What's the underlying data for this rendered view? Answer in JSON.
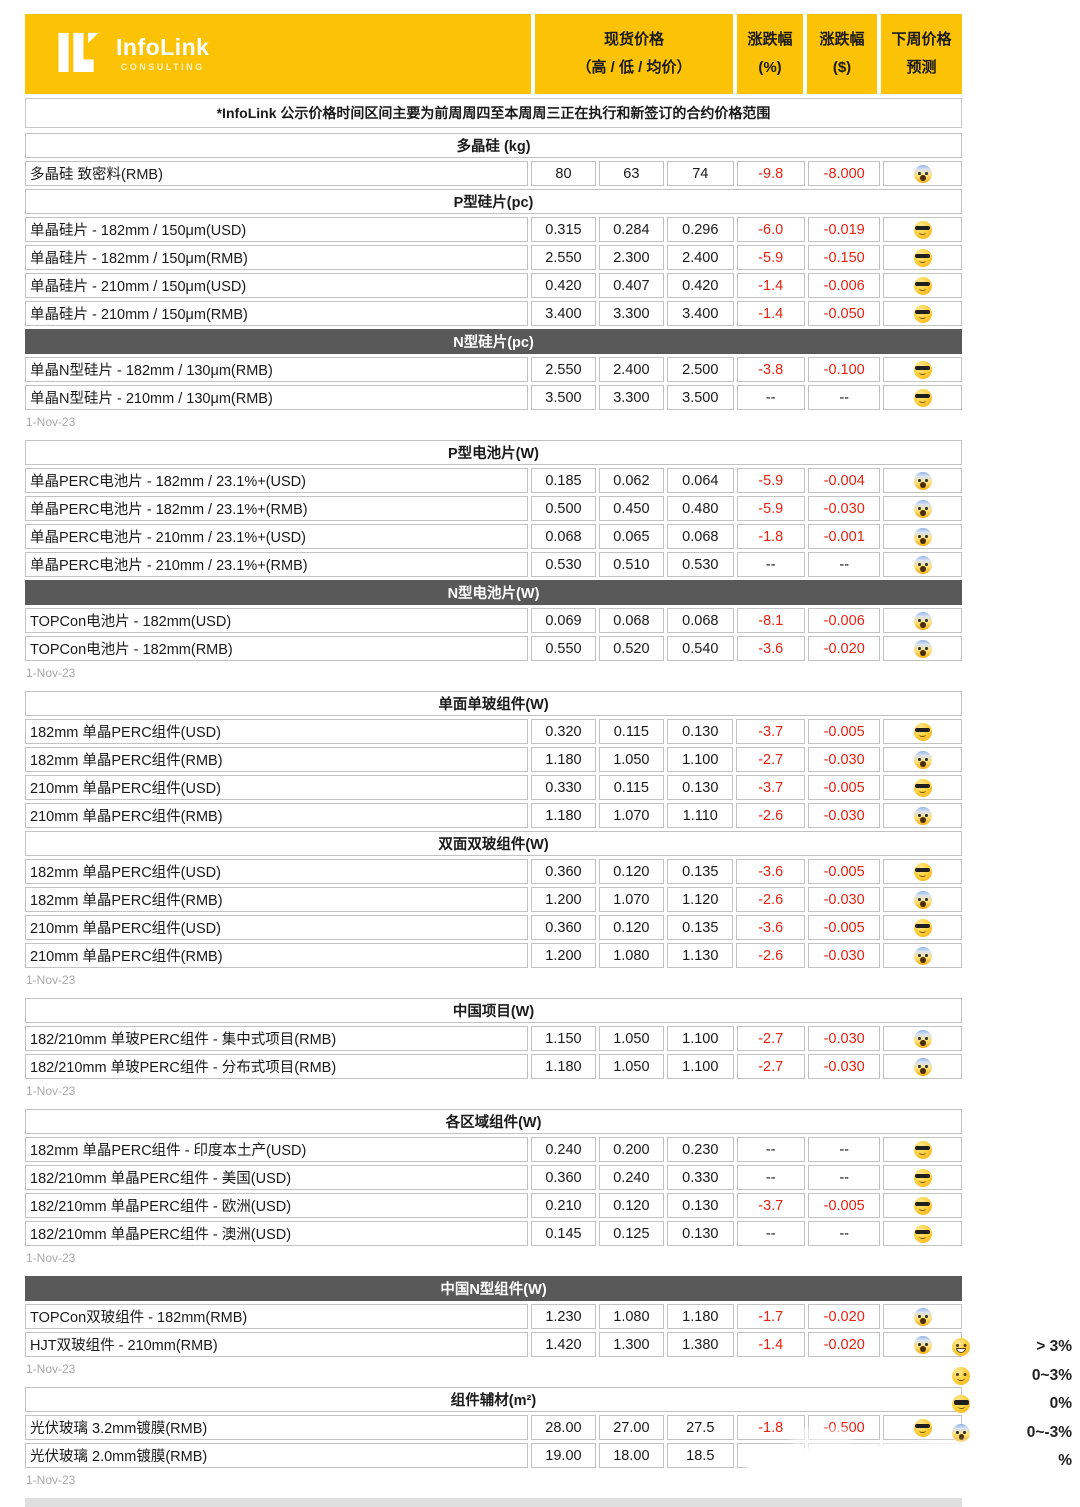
{
  "header": {
    "logo": {
      "name": "InfoLink",
      "subtitle": "CONSULTING"
    },
    "columns": {
      "spot_title": "现货价格",
      "spot_sub": "（高 / 低 / 均价）",
      "pct_title": "涨跌幅",
      "pct_sub": "(%)",
      "usd_title": "涨跌幅",
      "usd_sub": "($)",
      "forecast_title": "下周价格",
      "forecast_sub": "预测"
    }
  },
  "note": "*InfoLink 公示价格时间区间主要为前周周四至本周周三正在执行和新签订的合约价格范围",
  "date_label": "1-Nov-23",
  "colors": {
    "accent_yellow": "#fcc306",
    "section_light_gray": "#d9d9d9",
    "section_dark_gray": "#595959",
    "negative_red": "#e42313"
  },
  "legend": [
    {
      "emoji": "grin",
      "label": "> 3%"
    },
    {
      "emoji": "smile",
      "label": "0~3%"
    },
    {
      "emoji": "sunglasses",
      "label": "0%"
    },
    {
      "emoji": "scream",
      "label": "0~-3%"
    },
    {
      "emoji": "hidden",
      "label": "%"
    }
  ],
  "groups": [
    {
      "date": true,
      "sections": [
        {
          "title": "多晶硅 (kg)",
          "style": "light",
          "rows": [
            {
              "name": "多晶硅 致密料(RMB)",
              "high": "80",
              "low": "63",
              "avg": "74",
              "pct": "-9.8",
              "usd": "-8.000",
              "emoji": "scream"
            }
          ]
        },
        {
          "title": "P型硅片(pc)",
          "style": "light",
          "rows": [
            {
              "name": "单晶硅片 - 182mm / 150μm(USD)",
              "high": "0.315",
              "low": "0.284",
              "avg": "0.296",
              "pct": "-6.0",
              "usd": "-0.019",
              "emoji": "sunglasses"
            },
            {
              "name": "单晶硅片 - 182mm / 150μm(RMB)",
              "high": "2.550",
              "low": "2.300",
              "avg": "2.400",
              "pct": "-5.9",
              "usd": "-0.150",
              "emoji": "sunglasses"
            },
            {
              "name": "单晶硅片 - 210mm / 150μm(USD)",
              "high": "0.420",
              "low": "0.407",
              "avg": "0.420",
              "pct": "-1.4",
              "usd": "-0.006",
              "emoji": "sunglasses"
            },
            {
              "name": "单晶硅片 - 210mm / 150μm(RMB)",
              "high": "3.400",
              "low": "3.300",
              "avg": "3.400",
              "pct": "-1.4",
              "usd": "-0.050",
              "emoji": "sunglasses"
            }
          ]
        },
        {
          "title": "N型硅片(pc)",
          "style": "dark",
          "rows": [
            {
              "name": "单晶N型硅片 - 182mm / 130μm(RMB)",
              "high": "2.550",
              "low": "2.400",
              "avg": "2.500",
              "pct": "-3.8",
              "usd": "-0.100",
              "emoji": "sunglasses"
            },
            {
              "name": "单晶N型硅片 - 210mm / 130μm(RMB)",
              "high": "3.500",
              "low": "3.300",
              "avg": "3.500",
              "pct": "--",
              "usd": "--",
              "emoji": "sunglasses"
            }
          ]
        }
      ]
    },
    {
      "date": true,
      "sections": [
        {
          "title": "P型电池片(W)",
          "style": "light",
          "rows": [
            {
              "name": "单晶PERC电池片 - 182mm / 23.1%+(USD)",
              "high": "0.185",
              "low": "0.062",
              "avg": "0.064",
              "pct": "-5.9",
              "usd": "-0.004",
              "emoji": "scream"
            },
            {
              "name": "单晶PERC电池片 - 182mm / 23.1%+(RMB)",
              "high": "0.500",
              "low": "0.450",
              "avg": "0.480",
              "pct": "-5.9",
              "usd": "-0.030",
              "emoji": "scream"
            },
            {
              "name": "单晶PERC电池片 - 210mm / 23.1%+(USD)",
              "high": "0.068",
              "low": "0.065",
              "avg": "0.068",
              "pct": "-1.8",
              "usd": "-0.001",
              "emoji": "scream"
            },
            {
              "name": "单晶PERC电池片 - 210mm / 23.1%+(RMB)",
              "high": "0.530",
              "low": "0.510",
              "avg": "0.530",
              "pct": "--",
              "usd": "--",
              "emoji": "scream"
            }
          ]
        },
        {
          "title": "N型电池片(W)",
          "style": "dark",
          "rows": [
            {
              "name": "TOPCon电池片 - 182mm(USD)",
              "high": "0.069",
              "low": "0.068",
              "avg": "0.068",
              "pct": "-8.1",
              "usd": "-0.006",
              "emoji": "scream"
            },
            {
              "name": "TOPCon电池片 - 182mm(RMB)",
              "high": "0.550",
              "low": "0.520",
              "avg": "0.540",
              "pct": "-3.6",
              "usd": "-0.020",
              "emoji": "scream"
            }
          ]
        }
      ]
    },
    {
      "date": true,
      "sections": [
        {
          "title": "单面单玻组件(W)",
          "style": "light",
          "rows": [
            {
              "name": "182mm 单晶PERC组件(USD)",
              "high": "0.320",
              "low": "0.115",
              "avg": "0.130",
              "pct": "-3.7",
              "usd": "-0.005",
              "emoji": "sunglasses"
            },
            {
              "name": "182mm 单晶PERC组件(RMB)",
              "high": "1.180",
              "low": "1.050",
              "avg": "1.100",
              "pct": "-2.7",
              "usd": "-0.030",
              "emoji": "scream"
            },
            {
              "name": "210mm 单晶PERC组件(USD)",
              "high": "0.330",
              "low": "0.115",
              "avg": "0.130",
              "pct": "-3.7",
              "usd": "-0.005",
              "emoji": "sunglasses"
            },
            {
              "name": "210mm 单晶PERC组件(RMB)",
              "high": "1.180",
              "low": "1.070",
              "avg": "1.110",
              "pct": "-2.6",
              "usd": "-0.030",
              "emoji": "scream"
            }
          ]
        },
        {
          "title": "双面双玻组件(W)",
          "style": "light",
          "rows": [
            {
              "name": "182mm 单晶PERC组件(USD)",
              "high": "0.360",
              "low": "0.120",
              "avg": "0.135",
              "pct": "-3.6",
              "usd": "-0.005",
              "emoji": "sunglasses"
            },
            {
              "name": "182mm 单晶PERC组件(RMB)",
              "high": "1.200",
              "low": "1.070",
              "avg": "1.120",
              "pct": "-2.6",
              "usd": "-0.030",
              "emoji": "scream"
            },
            {
              "name": "210mm 单晶PERC组件(USD)",
              "high": "0.360",
              "low": "0.120",
              "avg": "0.135",
              "pct": "-3.6",
              "usd": "-0.005",
              "emoji": "sunglasses"
            },
            {
              "name": "210mm 单晶PERC组件(RMB)",
              "high": "1.200",
              "low": "1.080",
              "avg": "1.130",
              "pct": "-2.6",
              "usd": "-0.030",
              "emoji": "scream"
            }
          ]
        }
      ]
    },
    {
      "date": true,
      "sections": [
        {
          "title": "中国项目(W)",
          "style": "light",
          "rows": [
            {
              "name": "182/210mm 单玻PERC组件 - 集中式项目(RMB)",
              "high": "1.150",
              "low": "1.050",
              "avg": "1.100",
              "pct": "-2.7",
              "usd": "-0.030",
              "emoji": "scream"
            },
            {
              "name": "182/210mm 单玻PERC组件 - 分布式项目(RMB)",
              "high": "1.180",
              "low": "1.050",
              "avg": "1.100",
              "pct": "-2.7",
              "usd": "-0.030",
              "emoji": "scream"
            }
          ]
        }
      ]
    },
    {
      "date": true,
      "sections": [
        {
          "title": "各区域组件(W)",
          "style": "light",
          "rows": [
            {
              "name": "182mm 单晶PERC组件 - 印度本土产(USD)",
              "high": "0.240",
              "low": "0.200",
              "avg": "0.230",
              "pct": "--",
              "usd": "--",
              "emoji": "sunglasses"
            },
            {
              "name": "182/210mm 单晶PERC组件 - 美国(USD)",
              "high": "0.360",
              "low": "0.240",
              "avg": "0.330",
              "pct": "--",
              "usd": "--",
              "emoji": "sunglasses"
            },
            {
              "name": "182/210mm 单晶PERC组件 - 欧洲(USD)",
              "high": "0.210",
              "low": "0.120",
              "avg": "0.130",
              "pct": "-3.7",
              "usd": "-0.005",
              "emoji": "sunglasses"
            },
            {
              "name": "182/210mm 单晶PERC组件 - 澳洲(USD)",
              "high": "0.145",
              "low": "0.125",
              "avg": "0.130",
              "pct": "--",
              "usd": "--",
              "emoji": "sunglasses"
            }
          ]
        }
      ]
    },
    {
      "date": true,
      "sections": [
        {
          "title": "中国N型组件(W)",
          "style": "dark",
          "rows": [
            {
              "name": "TOPCon双玻组件 - 182mm(RMB)",
              "high": "1.230",
              "low": "1.080",
              "avg": "1.180",
              "pct": "-1.7",
              "usd": "-0.020",
              "emoji": "scream"
            },
            {
              "name": "HJT双玻组件 - 210mm(RMB)",
              "high": "1.420",
              "low": "1.300",
              "avg": "1.380",
              "pct": "-1.4",
              "usd": "-0.020",
              "emoji": "scream"
            }
          ]
        }
      ]
    },
    {
      "date": true,
      "sections": [
        {
          "title": "组件辅材(m²)",
          "style": "light",
          "rows": [
            {
              "name": "光伏玻璃 3.2mm镀膜(RMB)",
              "high": "28.00",
              "low": "27.00",
              "avg": "27.5",
              "pct": "-1.8",
              "usd": "-0.500",
              "emoji": "sunglasses"
            },
            {
              "name": "光伏玻璃 2.0mm镀膜(RMB)",
              "high": "19.00",
              "low": "18.00",
              "avg": "18.5",
              "pct": "",
              "usd": "",
              "emoji": ""
            }
          ]
        }
      ]
    }
  ]
}
